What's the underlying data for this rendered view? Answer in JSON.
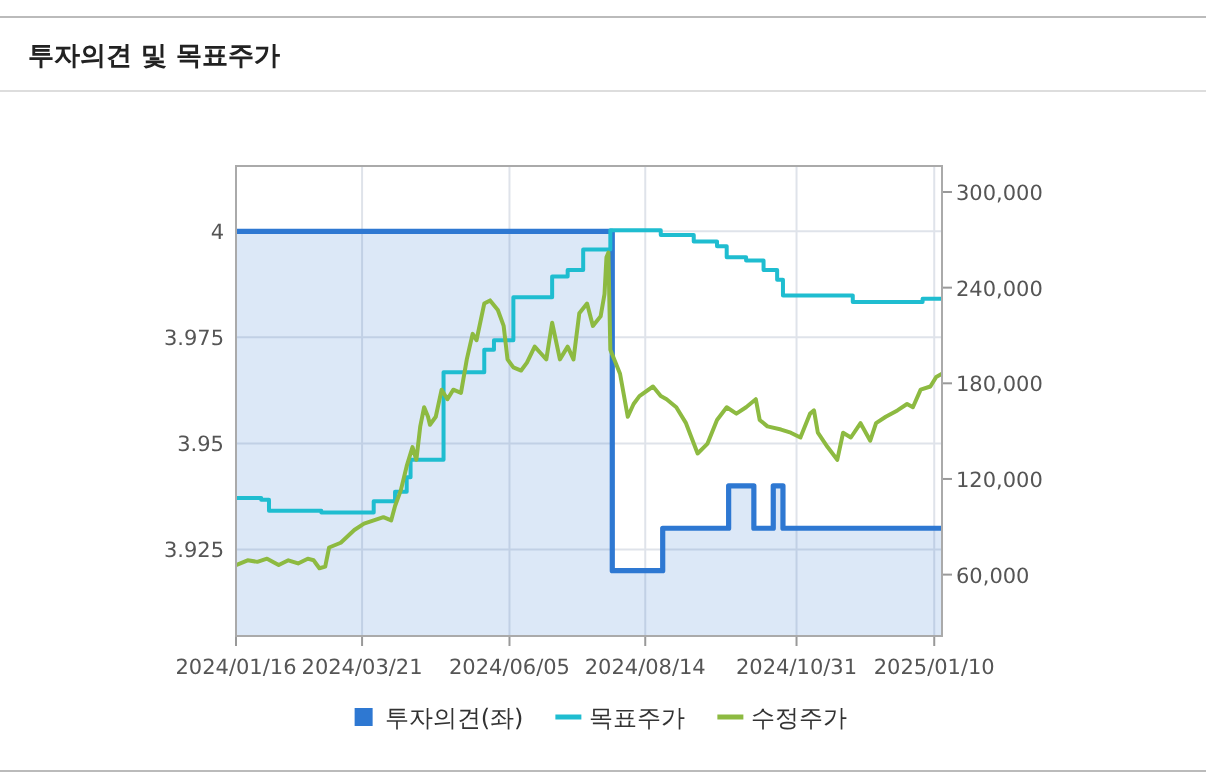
{
  "chart_data": {
    "type": "line",
    "title": "투자의견 및 목표주가",
    "xlim": [
      "2024-01-16",
      "2025-01-14"
    ],
    "xticks": [
      {
        "value": "2024-01-16",
        "label": "2024/01/16"
      },
      {
        "value": "2024-03-21",
        "label": "2024/03/21"
      },
      {
        "value": "2024-06-05",
        "label": "2024/06/05"
      },
      {
        "value": "2024-08-14",
        "label": "2024/08/14"
      },
      {
        "value": "2024-10-31",
        "label": "2024/10/31"
      },
      {
        "value": "2025-01-10",
        "label": "2025/01/10"
      }
    ],
    "ylim": [
      3.9046,
      4.0154
    ],
    "yticks": [
      3.925,
      3.95,
      3.975,
      4
    ],
    "y2lim": [
      21500,
      316300
    ],
    "y2ticks": [
      {
        "value": 60000,
        "label": "60,000"
      },
      {
        "value": 120000,
        "label": "120,000"
      },
      {
        "value": 180000,
        "label": "180,000"
      },
      {
        "value": 240000,
        "label": "240,000"
      },
      {
        "value": 300000,
        "label": "300,000"
      }
    ],
    "grid": true,
    "legend": "bottom",
    "series": [
      {
        "name": "투자의견(좌)",
        "type": "area",
        "color": "#2e78d2",
        "x": [
          "2024-01-16",
          "2024-07-28",
          "2024-07-28",
          "2024-08-23",
          "2024-08-23",
          "2024-09-26",
          "2024-09-26",
          "2024-10-09",
          "2024-10-09",
          "2024-10-19",
          "2024-10-19",
          "2024-10-24",
          "2024-10-24",
          "2025-01-14"
        ],
        "values": [
          4,
          4,
          3.92,
          3.92,
          3.93,
          3.93,
          3.94,
          3.94,
          3.93,
          3.93,
          3.94,
          3.94,
          3.93,
          3.93
        ]
      },
      {
        "name": "목표주가",
        "type": "step",
        "axis": "y2",
        "color": "#1fbdd0",
        "x": [
          "2024-01-16",
          "2024-01-29",
          "2024-02-02",
          "2024-02-29",
          "2024-03-17",
          "2024-03-27",
          "2024-04-07",
          "2024-04-13",
          "2024-04-15",
          "2024-05-02",
          "2024-05-23",
          "2024-05-28",
          "2024-06-07",
          "2024-06-27",
          "2024-07-05",
          "2024-07-13",
          "2024-07-27",
          "2024-08-22",
          "2024-09-08",
          "2024-09-20",
          "2024-09-25",
          "2024-10-05",
          "2024-10-14",
          "2024-10-21",
          "2024-10-24",
          "2024-11-29",
          "2025-01-04",
          "2025-01-14"
        ],
        "values": [
          108000,
          107000,
          100000,
          99000,
          99000,
          106000,
          112000,
          121000,
          132000,
          187000,
          201000,
          207000,
          234000,
          247000,
          251000,
          264000,
          276000,
          273000,
          269000,
          266000,
          259000,
          257000,
          251000,
          245000,
          235000,
          231000,
          233000,
          233000
        ]
      },
      {
        "name": "수정주가",
        "axis": "y2",
        "color": "#8dba41",
        "x": [
          "2024-01-16",
          "2024-01-22",
          "2024-01-27",
          "2024-02-01",
          "2024-02-07",
          "2024-02-12",
          "2024-02-17",
          "2024-02-22",
          "2024-02-25",
          "2024-02-28",
          "2024-03-02",
          "2024-03-04",
          "2024-03-10",
          "2024-03-17",
          "2024-03-22",
          "2024-03-27",
          "2024-04-01",
          "2024-04-05",
          "2024-04-07",
          "2024-04-10",
          "2024-04-13",
          "2024-04-16",
          "2024-04-18",
          "2024-04-20",
          "2024-04-22",
          "2024-04-24",
          "2024-04-25",
          "2024-04-28",
          "2024-05-01",
          "2024-05-04",
          "2024-05-07",
          "2024-05-11",
          "2024-05-14",
          "2024-05-17",
          "2024-05-19",
          "2024-05-23",
          "2024-05-26",
          "2024-05-30",
          "2024-06-02",
          "2024-06-04",
          "2024-06-07",
          "2024-06-11",
          "2024-06-14",
          "2024-06-18",
          "2024-06-21",
          "2024-06-24",
          "2024-06-27",
          "2024-07-01",
          "2024-07-05",
          "2024-07-08",
          "2024-07-11",
          "2024-07-15",
          "2024-07-18",
          "2024-07-22",
          "2024-07-24",
          "2024-07-25",
          "2024-07-26",
          "2024-07-27",
          "2024-08-01",
          "2024-08-05",
          "2024-08-08",
          "2024-08-11",
          "2024-08-18",
          "2024-08-22",
          "2024-08-25",
          "2024-08-30",
          "2024-09-04",
          "2024-09-10",
          "2024-09-15",
          "2024-09-20",
          "2024-09-25",
          "2024-09-30",
          "2024-10-05",
          "2024-10-10",
          "2024-10-12",
          "2024-10-16",
          "2024-10-23",
          "2024-10-28",
          "2024-11-02",
          "2024-11-07",
          "2024-11-09",
          "2024-11-11",
          "2024-11-16",
          "2024-11-21",
          "2024-11-24",
          "2024-11-28",
          "2024-12-03",
          "2024-12-08",
          "2024-12-11",
          "2024-12-16",
          "2024-12-22",
          "2024-12-27",
          "2024-12-30",
          "2025-01-03",
          "2025-01-08",
          "2025-01-11",
          "2025-01-14"
        ],
        "values": [
          66000,
          69000,
          68000,
          70000,
          66000,
          69000,
          67000,
          70000,
          69000,
          64000,
          65000,
          77000,
          80000,
          88000,
          92000,
          94000,
          96000,
          94000,
          103000,
          113000,
          128000,
          140000,
          132000,
          153000,
          165000,
          159000,
          154000,
          159000,
          176000,
          170000,
          176000,
          174000,
          195000,
          211000,
          207000,
          230000,
          232000,
          226000,
          216000,
          195000,
          190000,
          188000,
          193000,
          203000,
          199000,
          195000,
          218000,
          195000,
          203000,
          195000,
          224000,
          230000,
          216000,
          222000,
          236000,
          259000,
          262000,
          201000,
          186000,
          159000,
          167000,
          172000,
          178000,
          172000,
          170000,
          165000,
          155000,
          136000,
          142000,
          157000,
          165000,
          161000,
          165000,
          170000,
          157000,
          153000,
          151000,
          149000,
          146000,
          161000,
          163000,
          149000,
          140000,
          132000,
          149000,
          146000,
          155000,
          144000,
          155000,
          159000,
          163000,
          167000,
          165000,
          176000,
          178000,
          184000,
          186000
        ]
      }
    ]
  }
}
